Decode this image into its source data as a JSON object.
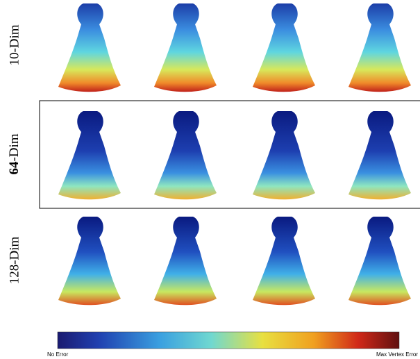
{
  "rows": [
    {
      "label": "10-Dim"
    },
    {
      "label_bold": "64",
      "label_rest": "-Dim"
    },
    {
      "label": "128-Dim"
    }
  ],
  "colorbar": {
    "min_label": "No Error",
    "max_label": "Max Vertex Error"
  }
}
